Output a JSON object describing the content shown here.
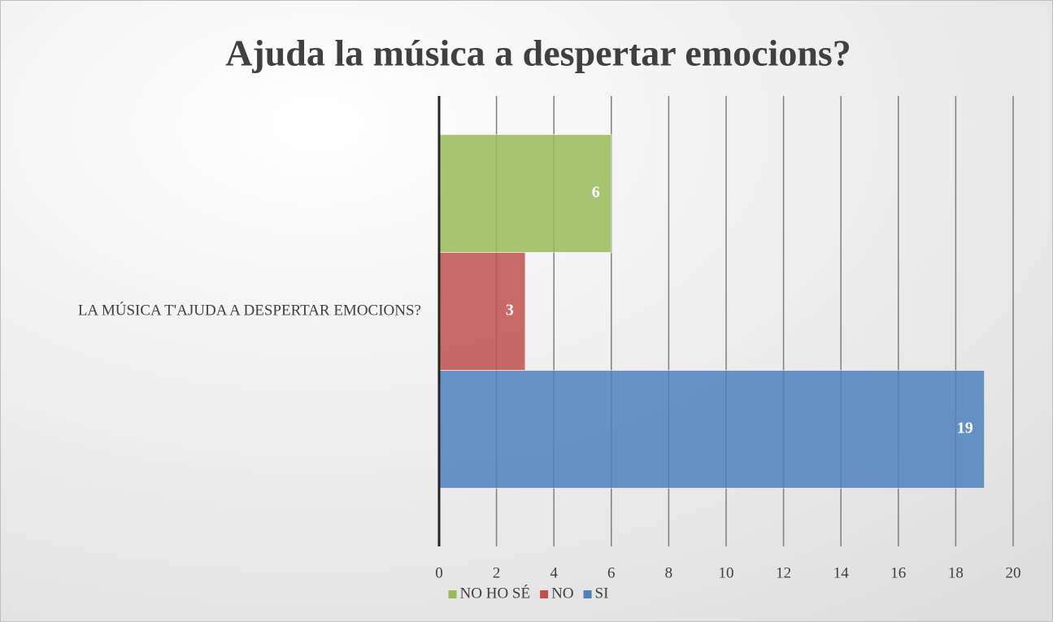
{
  "chart_data": {
    "type": "bar",
    "orientation": "horizontal",
    "title": "Ajuda la música a despertar emocions?",
    "categories": [
      "LA MÚSICA T'AJUDA A DESPERTAR EMOCIONS?"
    ],
    "series": [
      {
        "name": "NO HO SÉ",
        "color": "#9bbb59",
        "values": [
          6
        ]
      },
      {
        "name": "NO",
        "color": "#c0504d",
        "values": [
          3
        ]
      },
      {
        "name": "SI",
        "color": "#4f81bd",
        "values": [
          19
        ]
      }
    ],
    "xlim": [
      0,
      20
    ],
    "xticks": [
      0,
      2,
      4,
      6,
      8,
      10,
      12,
      14,
      16,
      18,
      20
    ],
    "grid": true,
    "legend": "bottom",
    "data_labels": true
  }
}
